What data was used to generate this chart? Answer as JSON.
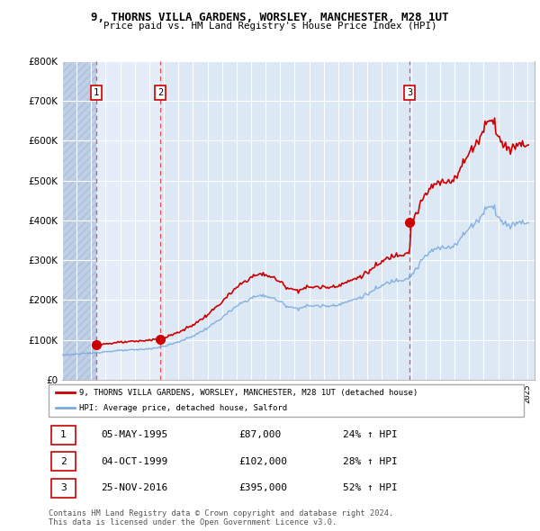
{
  "title": "9, THORNS VILLA GARDENS, WORSLEY, MANCHESTER, M28 1UT",
  "subtitle": "Price paid vs. HM Land Registry's House Price Index (HPI)",
  "property_label": "9, THORNS VILLA GARDENS, WORSLEY, MANCHESTER, M28 1UT (detached house)",
  "hpi_label": "HPI: Average price, detached house, Salford",
  "sales": [
    {
      "num": 1,
      "date": "1995-05-05",
      "price": 87000,
      "pct": "24%",
      "dir": "↑"
    },
    {
      "num": 2,
      "date": "1999-10-04",
      "price": 102000,
      "pct": "28%",
      "dir": "↑"
    },
    {
      "num": 3,
      "date": "2016-11-25",
      "price": 395000,
      "pct": "52%",
      "dir": "↑"
    }
  ],
  "sale_dates_display": [
    "05-MAY-1995",
    "04-OCT-1999",
    "25-NOV-2016"
  ],
  "sale_prices_display": [
    "£87,000",
    "£102,000",
    "£395,000"
  ],
  "sale_pct_display": [
    "24% ↑ HPI",
    "28% ↑ HPI",
    "52% ↑ HPI"
  ],
  "property_color": "#cc0000",
  "hpi_color": "#7aaadd",
  "bg_color": "#dde8f5",
  "hatch_color": "#c0cfe8",
  "grid_color": "#ffffff",
  "dashed_line_color": "#ee3333",
  "ylim": [
    0,
    800000
  ],
  "yticks": [
    0,
    100000,
    200000,
    300000,
    400000,
    500000,
    600000,
    700000,
    800000
  ],
  "xlim_start": 1993.0,
  "xlim_end": 2025.5,
  "footer_text": "Contains HM Land Registry data © Crown copyright and database right 2024.\nThis data is licensed under the Open Government Licence v3.0.",
  "legend_border_color": "#aaaaaa",
  "sale_box_border_color": "#cc0000",
  "sale1_t": 1995.333,
  "sale2_t": 1999.75,
  "sale3_t": 2016.917
}
